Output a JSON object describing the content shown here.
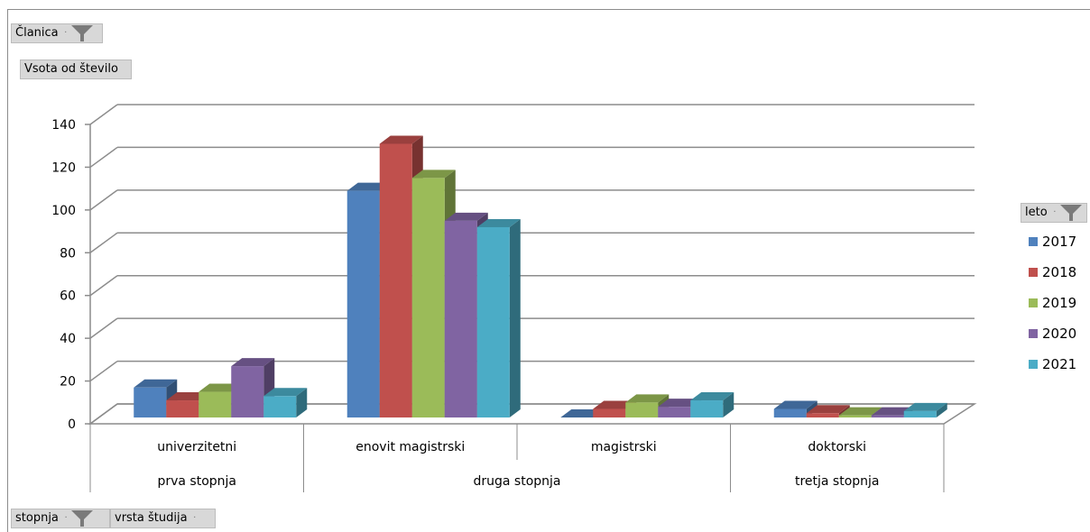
{
  "filters": {
    "clanica": "Članica",
    "value_field": "Vsota od število",
    "legend_field": "leto",
    "axis_field_1": "stopnja",
    "axis_field_2": "vrsta študija"
  },
  "icons": {
    "filter": "funnel-filter-icon",
    "dropdown": "dropdown-dot-icon"
  },
  "colors": {
    "2017": "#4f81bd",
    "2018": "#c0504d",
    "2019": "#9bbb59",
    "2020": "#8064a2",
    "2021": "#4bacc6",
    "grid": "#8c8c8c"
  },
  "chart_data": {
    "type": "bar",
    "style": "3d-clustered-column",
    "categories": [
      "univerzitetni",
      "enovit magistrski",
      "magistrski",
      "doktorski"
    ],
    "groups": [
      {
        "label": "prva stopnja",
        "categories": [
          "univerzitetni"
        ]
      },
      {
        "label": "druga stopnja",
        "categories": [
          "enovit magistrski",
          "magistrski"
        ]
      },
      {
        "label": "tretja stopnja",
        "categories": [
          "doktorski"
        ]
      }
    ],
    "series": [
      {
        "name": "2017",
        "values": [
          14,
          106,
          0,
          4
        ]
      },
      {
        "name": "2018",
        "values": [
          8,
          128,
          4,
          2
        ]
      },
      {
        "name": "2019",
        "values": [
          12,
          112,
          7,
          1
        ]
      },
      {
        "name": "2020",
        "values": [
          24,
          92,
          5,
          1
        ]
      },
      {
        "name": "2021",
        "values": [
          10,
          89,
          8,
          3
        ]
      }
    ],
    "ylim": [
      0,
      140
    ],
    "yticks": [
      "0",
      "20",
      "40",
      "60",
      "80",
      "100",
      "120",
      "140"
    ],
    "grid": true,
    "legend_position": "right"
  }
}
